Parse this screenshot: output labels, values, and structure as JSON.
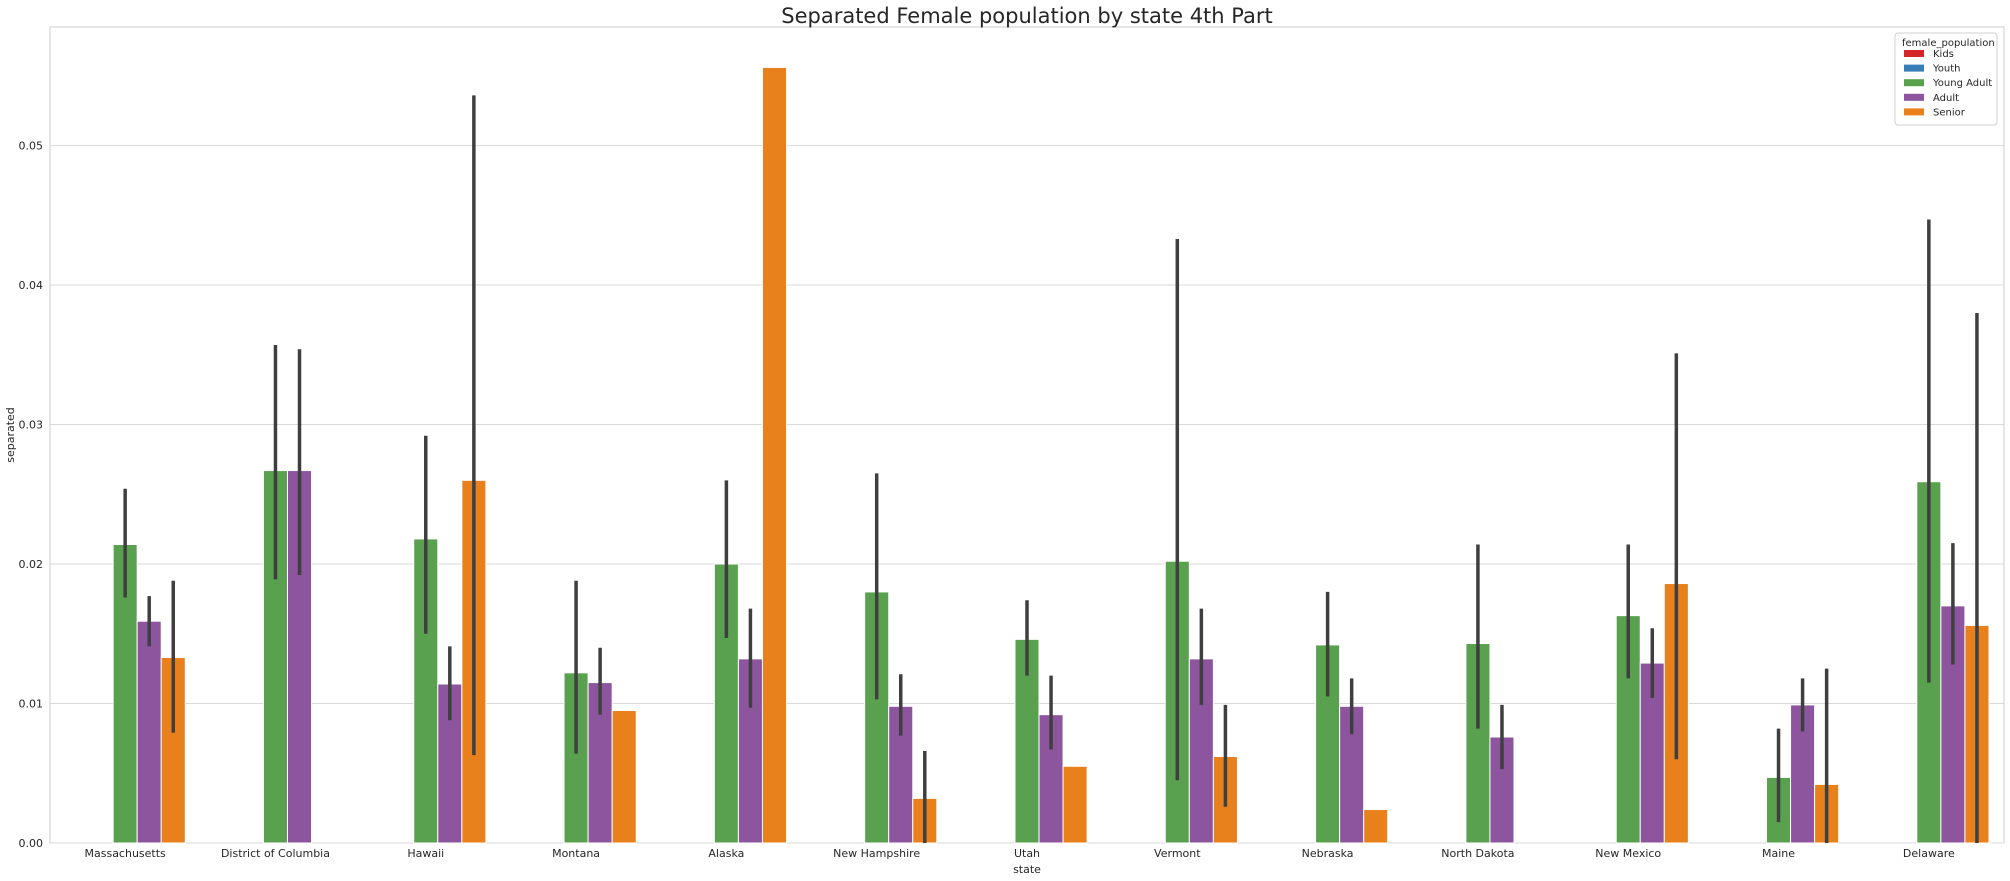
{
  "chart_data": {
    "type": "bar",
    "title": "Separated Female population by state 4th Part",
    "xlabel": "state",
    "ylabel": "separated",
    "ylim": [
      0,
      0.0585
    ],
    "yticks": [
      0.0,
      0.01,
      0.02,
      0.03,
      0.04,
      0.05
    ],
    "ytick_labels": [
      "0.00",
      "0.01",
      "0.02",
      "0.03",
      "0.04",
      "0.05"
    ],
    "grid": "horizontal",
    "legend_position": "top-right",
    "legend_title": "female_population",
    "categories": [
      "Massachusetts",
      "District of Columbia",
      "Hawaii",
      "Montana",
      "Alaska",
      "New Hampshire",
      "Utah",
      "Vermont",
      "Nebraska",
      "North Dakota",
      "New Mexico",
      "Maine",
      "Delaware"
    ],
    "series": [
      {
        "name": "Kids",
        "color": "#d62728",
        "values": [
          null,
          null,
          null,
          null,
          null,
          null,
          null,
          null,
          null,
          null,
          null,
          null,
          null
        ],
        "err_low": [
          null,
          null,
          null,
          null,
          null,
          null,
          null,
          null,
          null,
          null,
          null,
          null,
          null
        ],
        "err_high": [
          null,
          null,
          null,
          null,
          null,
          null,
          null,
          null,
          null,
          null,
          null,
          null,
          null
        ]
      },
      {
        "name": "Youth",
        "color": "#377eb8",
        "values": [
          null,
          null,
          null,
          null,
          null,
          null,
          null,
          null,
          null,
          null,
          null,
          null,
          null
        ],
        "err_low": [
          null,
          null,
          null,
          null,
          null,
          null,
          null,
          null,
          null,
          null,
          null,
          null,
          null
        ],
        "err_high": [
          null,
          null,
          null,
          null,
          null,
          null,
          null,
          null,
          null,
          null,
          null,
          null,
          null
        ]
      },
      {
        "name": "Young Adult",
        "color": "#59a14f",
        "values": [
          0.0214,
          0.0267,
          0.0218,
          0.0122,
          0.02,
          0.018,
          0.0146,
          0.0202,
          0.0142,
          0.0143,
          0.0163,
          0.0047,
          0.0259
        ],
        "err_low": [
          0.0176,
          0.0189,
          0.015,
          0.0064,
          0.0147,
          0.0103,
          0.012,
          0.0045,
          0.0105,
          0.0082,
          0.0118,
          0.0015,
          0.0115
        ],
        "err_high": [
          0.0254,
          0.0357,
          0.0292,
          0.0188,
          0.026,
          0.0265,
          0.0174,
          0.0433,
          0.018,
          0.0214,
          0.0214,
          0.0082,
          0.0447
        ]
      },
      {
        "name": "Adult",
        "color": "#8c559e",
        "values": [
          0.0159,
          0.0267,
          0.0114,
          0.0115,
          0.0132,
          0.0098,
          0.0092,
          0.0132,
          0.0098,
          0.0076,
          0.0129,
          0.0099,
          0.017
        ],
        "err_low": [
          0.0141,
          0.0192,
          0.0088,
          0.0092,
          0.0097,
          0.0077,
          0.0067,
          0.0099,
          0.0078,
          0.0053,
          0.0104,
          0.008,
          0.0128
        ],
        "err_high": [
          0.0177,
          0.0354,
          0.0141,
          0.014,
          0.0168,
          0.0121,
          0.012,
          0.0168,
          0.0118,
          0.0099,
          0.0154,
          0.0118,
          0.0215
        ]
      },
      {
        "name": "Senior",
        "color": "#e8801b",
        "values": [
          0.0133,
          null,
          0.026,
          0.0095,
          0.0556,
          0.0032,
          0.0055,
          0.0062,
          0.0024,
          null,
          0.0186,
          0.0042,
          0.0156
        ],
        "err_low": [
          0.0079,
          null,
          0.0063,
          null,
          null,
          0.0,
          null,
          0.0026,
          null,
          null,
          0.006,
          0.0,
          0.0
        ],
        "err_high": [
          0.0188,
          null,
          0.0536,
          null,
          null,
          0.0066,
          null,
          0.0099,
          null,
          null,
          0.0351,
          0.0125,
          0.038
        ]
      }
    ]
  }
}
